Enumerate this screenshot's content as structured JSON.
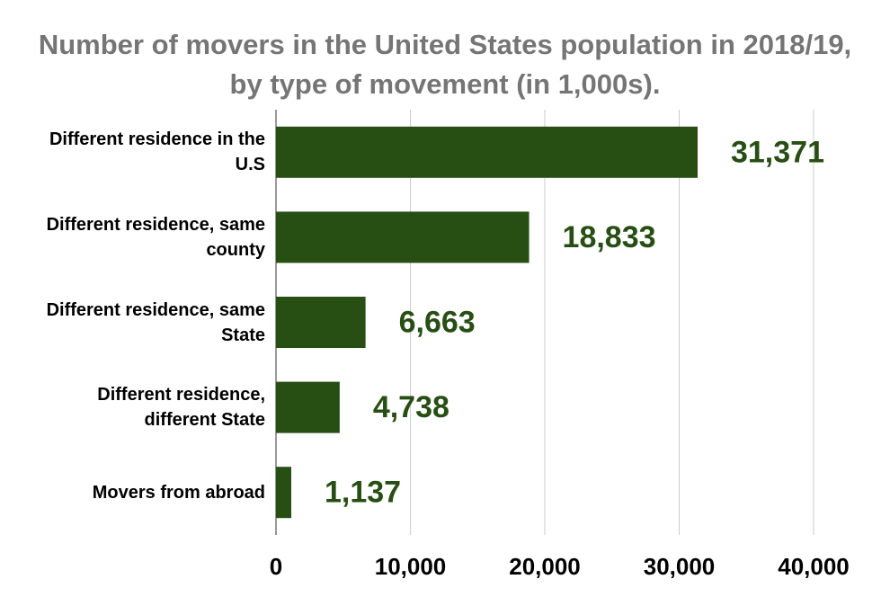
{
  "chart_data": {
    "type": "bar",
    "orientation": "horizontal",
    "title": "Number of movers in the United States population in 2018/19, by type of movement (in 1,000s).",
    "categories": [
      "Different residence in the U.S",
      "Different residence, same county",
      "Different residence, same State",
      "Different residence, different State",
      "Movers from abroad"
    ],
    "values": [
      31371,
      18833,
      6663,
      4738,
      1137
    ],
    "value_labels": [
      "31,371",
      "18,833",
      "6,663",
      "4,738",
      "1,137"
    ],
    "color": "#274e13",
    "xlim": [
      0,
      40000
    ],
    "xticks": [
      0,
      {
        "value": 10000,
        "label": "10,000"
      },
      {
        "value": 20000,
        "label": "20,000"
      },
      {
        "value": 30000,
        "label": "30,000"
      },
      {
        "value": 40000,
        "label": "40,000"
      }
    ],
    "grid": true
  }
}
